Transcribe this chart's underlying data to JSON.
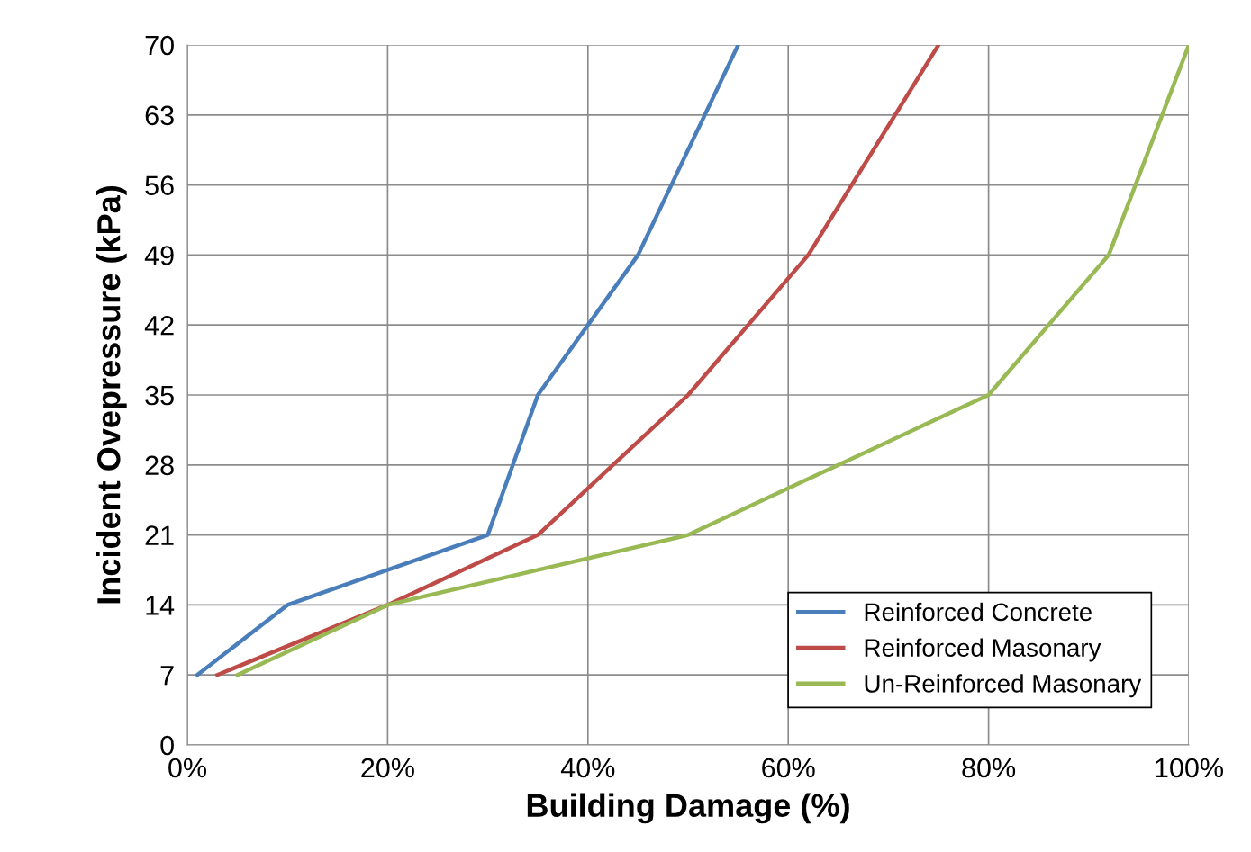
{
  "chart_data": {
    "type": "line",
    "xlabel": "Building Damage (%)",
    "ylabel": "Incident Ovepressure (kPa)",
    "xlim": [
      0,
      100
    ],
    "xticks": [
      {
        "value": 0,
        "label": "0%"
      },
      {
        "value": 20,
        "label": "20%"
      },
      {
        "value": 40,
        "label": "40%"
      },
      {
        "value": 60,
        "label": "60%"
      },
      {
        "value": 80,
        "label": "80%"
      },
      {
        "value": 100,
        "label": "100%"
      }
    ],
    "ylim": [
      0,
      70
    ],
    "yticks": [
      0,
      7,
      14,
      21,
      28,
      35,
      42,
      49,
      56,
      63,
      70
    ],
    "grid": true,
    "legend": "bottom right",
    "marker": "none",
    "line_style": "solid",
    "series": [
      {
        "name": "Reinforced Concrete",
        "color": "#4a7ebb",
        "x": [
          1,
          10,
          30,
          35,
          45,
          55
        ],
        "values": [
          7,
          14,
          21,
          35,
          49,
          70
        ]
      },
      {
        "name": "Reinforced Masonary",
        "color": "#be4b48",
        "x": [
          3,
          20,
          35,
          50,
          62,
          75
        ],
        "values": [
          7,
          14,
          21,
          35,
          49,
          70
        ]
      },
      {
        "name": "Un-Reinforced Masonary",
        "color": "#98b954",
        "x": [
          5,
          20,
          50,
          80,
          92,
          100
        ],
        "values": [
          7,
          14,
          21,
          35,
          49,
          70
        ]
      }
    ]
  }
}
